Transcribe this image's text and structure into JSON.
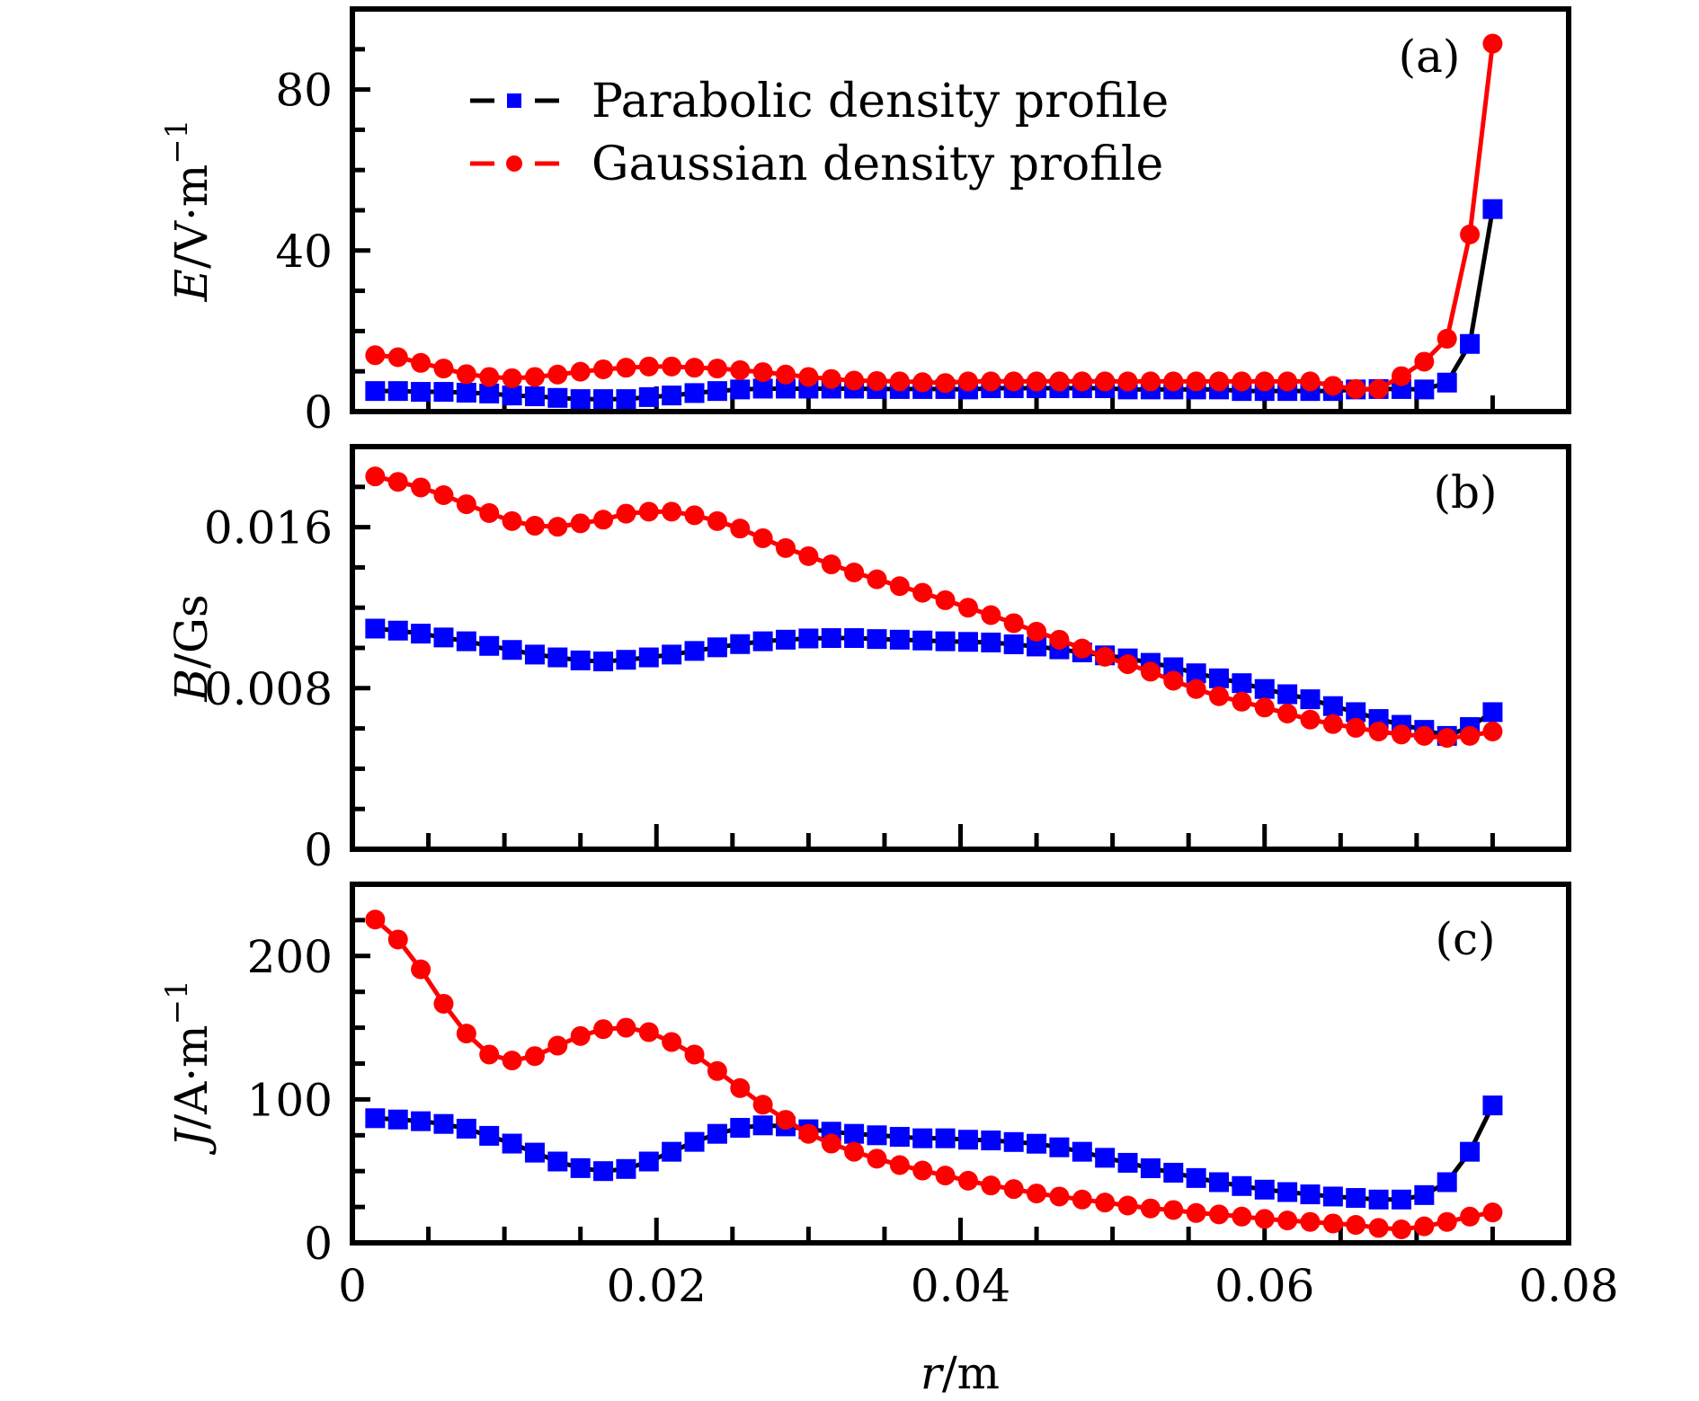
{
  "chart_data": {
    "type": "line",
    "layout": "three vertically stacked panels sharing x axis",
    "x": [
      0.0015,
      0.003,
      0.0045,
      0.006,
      0.0075,
      0.009,
      0.0105,
      0.012,
      0.0135,
      0.015,
      0.0165,
      0.018,
      0.0195,
      0.021,
      0.0225,
      0.024,
      0.0255,
      0.027,
      0.0285,
      0.03,
      0.0315,
      0.033,
      0.0345,
      0.036,
      0.0375,
      0.039,
      0.0405,
      0.042,
      0.0435,
      0.045,
      0.0465,
      0.048,
      0.0495,
      0.051,
      0.0525,
      0.054,
      0.0555,
      0.057,
      0.0585,
      0.06,
      0.0615,
      0.063,
      0.0645,
      0.066,
      0.0675,
      0.069,
      0.0705,
      0.072,
      0.0735,
      0.075
    ],
    "xlabel": "r/m",
    "xlim": [
      0,
      0.08
    ],
    "xticks": [
      "0",
      "0.02",
      "0.04",
      "0.06",
      "0.08"
    ],
    "xtick_values": [
      0,
      0.02,
      0.04,
      0.06,
      0.08
    ],
    "x_minor_step": 0.005,
    "legend": {
      "placement": "top-center of panel (a)",
      "entries": [
        {
          "label": "Parabolic density profile",
          "marker": "square",
          "marker_color": "#0000ff",
          "line_color": "#000000"
        },
        {
          "label": "Gaussian density profile",
          "marker": "circle",
          "marker_color": "#ff0000",
          "line_color": "#ff0000"
        }
      ]
    },
    "panels": [
      {
        "id": "a",
        "panel_label": "(a)",
        "ylabel_var": "E",
        "ylabel_unit": "/V·m",
        "ylabel_exp": "−1",
        "ylim": [
          0,
          100
        ],
        "yticks": [
          "0",
          "40",
          "80"
        ],
        "ytick_values": [
          0,
          40,
          80
        ],
        "y_minor_step": 10,
        "series": [
          {
            "name": "Parabolic density profile",
            "values": [
              5.1,
              5.1,
              4.9,
              4.9,
              4.7,
              4.5,
              4.0,
              3.8,
              3.4,
              3.1,
              3.1,
              3.1,
              3.6,
              4.0,
              4.6,
              5.1,
              5.5,
              5.7,
              5.7,
              5.7,
              5.7,
              5.7,
              5.6,
              5.6,
              5.6,
              5.6,
              5.5,
              5.8,
              5.8,
              5.8,
              5.8,
              5.8,
              5.8,
              5.5,
              5.5,
              5.5,
              5.5,
              5.5,
              5.1,
              5.1,
              5.1,
              5.1,
              5.1,
              5.5,
              5.6,
              5.6,
              5.5,
              7.2,
              16.8,
              50.3
            ]
          },
          {
            "name": "Gaussian density profile",
            "values": [
              14.0,
              13.5,
              12.1,
              10.7,
              9.3,
              8.6,
              8.3,
              8.6,
              9.2,
              9.9,
              10.5,
              10.9,
              11.2,
              11.2,
              10.9,
              10.7,
              10.3,
              9.8,
              9.2,
              8.6,
              8.1,
              7.7,
              7.6,
              7.5,
              7.3,
              7.1,
              7.5,
              7.5,
              7.5,
              7.5,
              7.5,
              7.5,
              7.5,
              7.5,
              7.5,
              7.5,
              7.5,
              7.5,
              7.5,
              7.5,
              7.5,
              7.5,
              6.4,
              5.6,
              5.6,
              8.8,
              12.4,
              18.1,
              44.0,
              91.4
            ]
          }
        ]
      },
      {
        "id": "b",
        "panel_label": "(b)",
        "ylabel_var": "B",
        "ylabel_unit": "/Gs",
        "ylabel_exp": "",
        "ylim": [
          0,
          0.02
        ],
        "yticks": [
          "0",
          "0.008",
          "0.016"
        ],
        "ytick_values": [
          0,
          0.008,
          0.016
        ],
        "y_minor_step": 0.002,
        "series": [
          {
            "name": "Parabolic density profile",
            "values": [
              0.01096,
              0.01086,
              0.01071,
              0.01052,
              0.01033,
              0.0101,
              0.0099,
              0.00967,
              0.00953,
              0.00938,
              0.00933,
              0.00941,
              0.00953,
              0.00967,
              0.00985,
              0.01003,
              0.01019,
              0.01033,
              0.01041,
              0.01047,
              0.01049,
              0.01049,
              0.01044,
              0.01041,
              0.01037,
              0.01033,
              0.0103,
              0.01027,
              0.01018,
              0.01007,
              0.00993,
              0.00978,
              0.00963,
              0.00948,
              0.00926,
              0.00904,
              0.00874,
              0.00849,
              0.00825,
              0.00796,
              0.0077,
              0.00745,
              0.00711,
              0.00681,
              0.00647,
              0.00618,
              0.00593,
              0.00563,
              0.00607,
              0.00681
            ]
          },
          {
            "name": "Gaussian density profile",
            "values": [
              0.01852,
              0.01825,
              0.01797,
              0.01759,
              0.01714,
              0.0167,
              0.0163,
              0.01607,
              0.01602,
              0.01619,
              0.01637,
              0.01667,
              0.01677,
              0.01677,
              0.01659,
              0.0163,
              0.01593,
              0.01545,
              0.01496,
              0.01456,
              0.01415,
              0.01375,
              0.01341,
              0.01307,
              0.01274,
              0.01237,
              0.012,
              0.01163,
              0.01123,
              0.01081,
              0.01041,
              0.00997,
              0.00956,
              0.00919,
              0.00882,
              0.00837,
              0.00796,
              0.0076,
              0.00733,
              0.00704,
              0.00674,
              0.00644,
              0.00622,
              0.00603,
              0.00585,
              0.0057,
              0.00563,
              0.00553,
              0.00563,
              0.00585
            ]
          }
        ]
      },
      {
        "id": "c",
        "panel_label": "(c)",
        "ylabel_var": "J",
        "ylabel_unit": "/A·m",
        "ylabel_exp": "−1",
        "ylim": [
          0,
          250
        ],
        "yticks": [
          "0",
          "100",
          "200"
        ],
        "ytick_values": [
          0,
          100,
          200
        ],
        "y_minor_step": 25,
        "series": [
          {
            "name": "Parabolic density profile",
            "values": [
              86.9,
              86.0,
              84.8,
              82.9,
              79.6,
              74.6,
              69.2,
              62.9,
              56.7,
              52.1,
              50.0,
              51.5,
              56.7,
              63.5,
              70.4,
              76.0,
              80.2,
              81.9,
              81.2,
              79.2,
              77.5,
              76.0,
              75.0,
              73.9,
              72.9,
              72.9,
              71.9,
              71.4,
              70.3,
              69.1,
              66.6,
              63.5,
              59.3,
              55.8,
              52.0,
              48.9,
              45.2,
              42.3,
              39.6,
              37.1,
              35.4,
              33.8,
              32.3,
              31.3,
              30.2,
              30.2,
              33.3,
              42.3,
              63.5,
              95.8
            ]
          },
          {
            "name": "Gaussian density profile",
            "values": [
              225.4,
              211.5,
              190.7,
              166.7,
              145.9,
              131.3,
              127.1,
              130.2,
              137.5,
              144.2,
              149.0,
              150.0,
              146.9,
              140.0,
              131.3,
              119.8,
              107.9,
              96.3,
              85.8,
              76.0,
              69.2,
              63.5,
              58.7,
              54.2,
              50.4,
              46.9,
              43.3,
              40.0,
              37.5,
              34.4,
              32.3,
              30.2,
              28.1,
              26.0,
              24.0,
              22.9,
              20.8,
              19.8,
              18.3,
              16.7,
              15.6,
              14.6,
              13.5,
              12.5,
              10.4,
              9.4,
              11.5,
              14.6,
              18.3,
              21.2
            ]
          }
        ]
      }
    ]
  }
}
